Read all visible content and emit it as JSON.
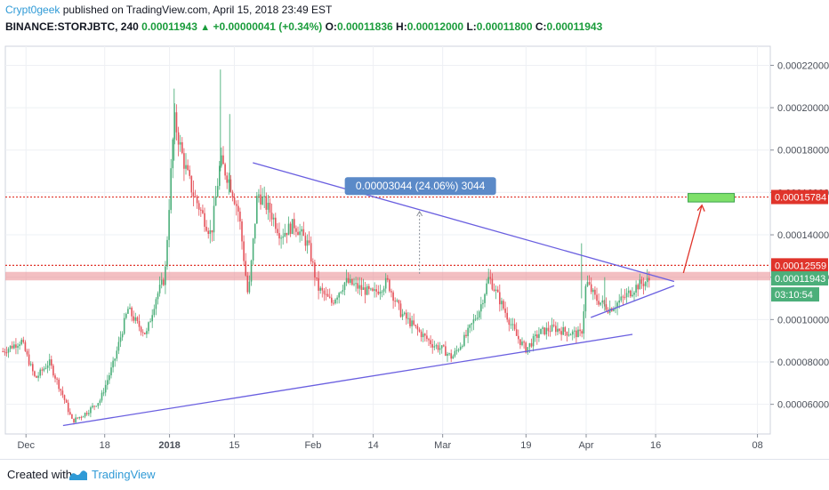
{
  "header": {
    "author": "Crypt0geek",
    "published_text": "published on TradingView.com, April 15, 2018 23:49 EST",
    "symbol": "BINANCE:STORJBTC, 240",
    "last": "0.00011943",
    "change": "+0.00000041 (+0.34%)",
    "o_label": "O:",
    "o_value": "0.00011836",
    "h_label": "H:",
    "h_value": "0.00012000",
    "l_label": "L:",
    "l_value": "0.00011800",
    "c_label": "C:",
    "c_value": "0.00011943"
  },
  "footer": {
    "created_with": "Created with",
    "brand": "TradingView"
  },
  "colors": {
    "up": "#4caf7a",
    "down": "#e5535b",
    "trendline": "#6a5fe0",
    "resistance": "#e0342b",
    "target_box": "#7ee06a",
    "price_tag": "#4caf7a",
    "annotation": "#5b8ac8"
  },
  "chart_data": {
    "type": "candlestick",
    "y_axis": {
      "ticks": [
        6e-05,
        8e-05,
        0.0001,
        0.00012,
        0.00014,
        0.00016,
        0.00018,
        0.0002,
        0.00022
      ],
      "tick_labels": [
        "0.00006000",
        "0.00008000",
        "0.00010000",
        "0.00012000",
        "0.00014000",
        "0.00016000",
        "0.00018000",
        "0.00020000",
        "0.00022000"
      ],
      "ylim": [
        4.6e-05,
        0.000229
      ]
    },
    "x_axis": {
      "tick_labels": [
        "Dec",
        "18",
        "2018",
        "15",
        "Feb",
        "14",
        "Mar",
        "19",
        "Apr",
        "16",
        "08"
      ]
    },
    "price_path": [
      [
        "2017-11-26",
        8.5e-05
      ],
      [
        "2017-11-30",
        9e-05
      ],
      [
        "2017-12-03",
        7.2e-05
      ],
      [
        "2017-12-06",
        8e-05
      ],
      [
        "2017-12-09",
        6.4e-05
      ],
      [
        "2017-12-11",
        5.2e-05
      ],
      [
        "2017-12-14",
        5.6e-05
      ],
      [
        "2017-12-17",
        6.2e-05
      ],
      [
        "2017-12-20",
        8e-05
      ],
      [
        "2017-12-23",
        0.000105
      ],
      [
        "2017-12-25",
        9.8e-05
      ],
      [
        "2017-12-27",
        9.3e-05
      ],
      [
        "2017-12-29",
        0.00011
      ],
      [
        "2017-12-31",
        0.00012
      ],
      [
        "2018-01-02",
        0.000195
      ],
      [
        "2018-01-04",
        0.000175
      ],
      [
        "2018-01-06",
        0.00016
      ],
      [
        "2018-01-08",
        0.00015
      ],
      [
        "2018-01-10",
        0.00014
      ],
      [
        "2018-01-12",
        0.000175
      ],
      [
        "2018-01-14",
        0.000165
      ],
      [
        "2018-01-16",
        0.00015
      ],
      [
        "2018-01-18",
        0.00011
      ],
      [
        "2018-01-20",
        0.00016
      ],
      [
        "2018-01-23",
        0.00015
      ],
      [
        "2018-01-25",
        0.00014
      ],
      [
        "2018-01-28",
        0.000145
      ],
      [
        "2018-01-31",
        0.000135
      ],
      [
        "2018-02-02",
        0.000115
      ],
      [
        "2018-02-05",
        0.000108
      ],
      [
        "2018-02-08",
        0.000118
      ],
      [
        "2018-02-11",
        0.000115
      ],
      [
        "2018-02-14",
        0.000112
      ],
      [
        "2018-02-17",
        0.000118
      ],
      [
        "2018-02-20",
        0.000103
      ],
      [
        "2018-02-24",
        9.4e-05
      ],
      [
        "2018-02-27",
        8.8e-05
      ],
      [
        "2018-03-01",
        8.6e-05
      ],
      [
        "2018-03-03",
        8.2e-05
      ],
      [
        "2018-03-06",
        9.2e-05
      ],
      [
        "2018-03-09",
        0.000105
      ],
      [
        "2018-03-11",
        0.00012
      ],
      [
        "2018-03-14",
        0.000106
      ],
      [
        "2018-03-17",
        9.2e-05
      ],
      [
        "2018-03-19",
        8.6e-05
      ],
      [
        "2018-03-22",
        9.4e-05
      ],
      [
        "2018-03-25",
        9.6e-05
      ],
      [
        "2018-03-28",
        9.4e-05
      ],
      [
        "2018-03-31",
        9.3e-05
      ],
      [
        "2018-04-01",
        0.000118
      ],
      [
        "2018-04-03",
        0.00011
      ],
      [
        "2018-04-06",
        0.000105
      ],
      [
        "2018-04-09",
        0.00011
      ],
      [
        "2018-04-12",
        0.000116
      ],
      [
        "2018-04-15",
        0.000119
      ]
    ],
    "annotations": {
      "measure_label": "0.00003044 (24.06%) 3044",
      "resistance_level": 0.00012559,
      "resistance_label": "0.00012559",
      "target_level": 0.00015784,
      "target_label": "0.00015784",
      "last_price_label": "0.00011943",
      "countdown_label": "03:10:54"
    },
    "trendlines": [
      {
        "from": [
          "2018-01-19",
          0.000174
        ],
        "to": [
          "2018-04-20",
          0.000118
        ]
      },
      {
        "from": [
          "2017-12-09",
          5e-05
        ],
        "to": [
          "2018-04-11",
          9.3e-05
        ]
      },
      {
        "from": [
          "2018-04-02",
          0.000101
        ],
        "to": [
          "2018-04-20",
          0.000116
        ]
      }
    ]
  }
}
